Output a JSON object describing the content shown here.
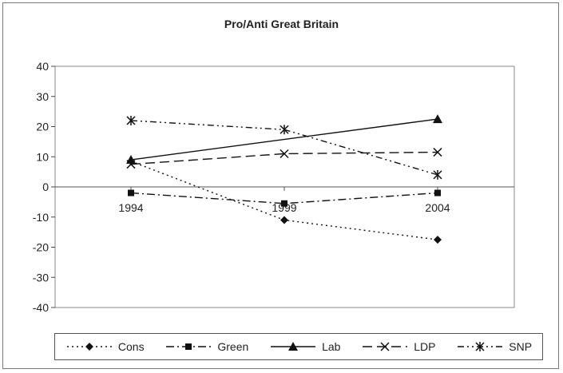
{
  "chart_data": {
    "type": "line",
    "title": "Pro/Anti Great Britain",
    "xlabel": "",
    "ylabel": "",
    "categories": [
      "1994",
      "1999",
      "2004"
    ],
    "ylim": [
      -40,
      40
    ],
    "yticks": [
      40,
      30,
      20,
      10,
      0,
      -10,
      -20,
      -30,
      -40
    ],
    "grid": false,
    "legend_position": "bottom",
    "series": [
      {
        "name": "Cons",
        "values": [
          8.5,
          -11,
          -17.5
        ],
        "marker": "diamond",
        "dash": "dot"
      },
      {
        "name": "Green",
        "values": [
          -2,
          -5.5,
          -2
        ],
        "marker": "square",
        "dash": "dashdot"
      },
      {
        "name": "Lab",
        "values": [
          9,
          null,
          22.5
        ],
        "marker": "triangle",
        "dash": "solid"
      },
      {
        "name": "LDP",
        "values": [
          7.5,
          11,
          11.5
        ],
        "marker": "x",
        "dash": "dash"
      },
      {
        "name": "SNP",
        "values": [
          22,
          19,
          4
        ],
        "marker": "asterisk",
        "dash": "dashdot2"
      }
    ]
  }
}
